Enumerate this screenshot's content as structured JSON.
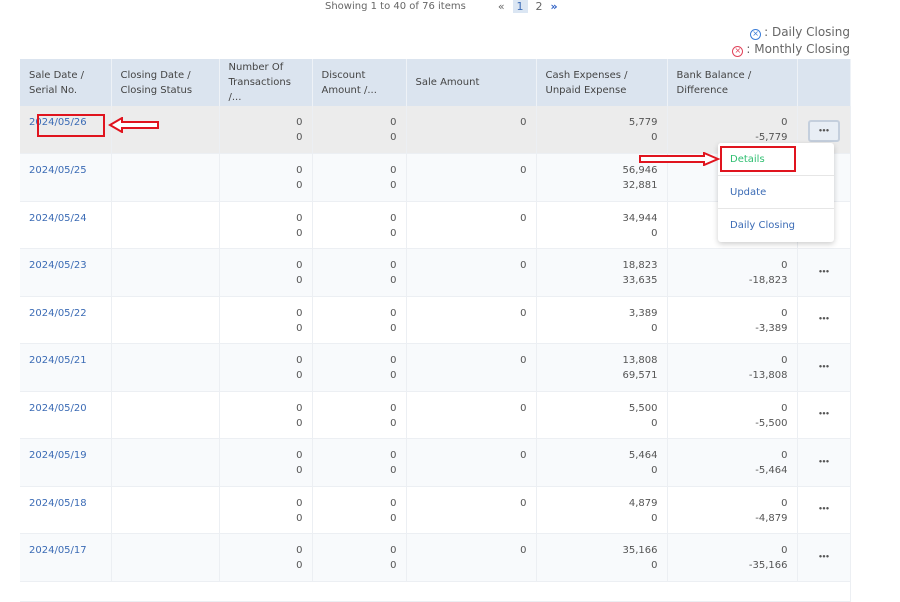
{
  "pagination": {
    "info": "Showing 1 to 40 of 76 items",
    "prev": "«",
    "pages": [
      "1",
      "2"
    ],
    "current": "1",
    "next": "»"
  },
  "legend": {
    "daily": ": Daily Closing",
    "monthly": ": Monthly Closing",
    "daily_color": "#3b7dd8",
    "monthly_color": "#e0435a"
  },
  "columns": [
    "Sale Date / Serial No.",
    "Closing Date / Closing Status",
    "Number Of Transactions /...",
    "Discount Amount /...",
    "Sale Amount",
    "Cash Expenses / Unpaid Expense",
    "Bank Balance / Difference",
    ""
  ],
  "rows": [
    {
      "date": "2024/05/26",
      "tx": [
        "0",
        "0"
      ],
      "disc": [
        "0",
        "0"
      ],
      "sale": "0",
      "cash": [
        "5,779",
        "0"
      ],
      "bank": [
        "0",
        "-5,779"
      ]
    },
    {
      "date": "2024/05/25",
      "tx": [
        "0",
        "0"
      ],
      "disc": [
        "0",
        "0"
      ],
      "sale": "0",
      "cash": [
        "56,946",
        "32,881"
      ],
      "bank": [
        "",
        ""
      ]
    },
    {
      "date": "2024/05/24",
      "tx": [
        "0",
        "0"
      ],
      "disc": [
        "0",
        "0"
      ],
      "sale": "0",
      "cash": [
        "34,944",
        "0"
      ],
      "bank": [
        "",
        ""
      ]
    },
    {
      "date": "2024/05/23",
      "tx": [
        "0",
        "0"
      ],
      "disc": [
        "0",
        "0"
      ],
      "sale": "0",
      "cash": [
        "18,823",
        "33,635"
      ],
      "bank": [
        "0",
        "-18,823"
      ]
    },
    {
      "date": "2024/05/22",
      "tx": [
        "0",
        "0"
      ],
      "disc": [
        "0",
        "0"
      ],
      "sale": "0",
      "cash": [
        "3,389",
        "0"
      ],
      "bank": [
        "0",
        "-3,389"
      ]
    },
    {
      "date": "2024/05/21",
      "tx": [
        "0",
        "0"
      ],
      "disc": [
        "0",
        "0"
      ],
      "sale": "0",
      "cash": [
        "13,808",
        "69,571"
      ],
      "bank": [
        "0",
        "-13,808"
      ]
    },
    {
      "date": "2024/05/20",
      "tx": [
        "0",
        "0"
      ],
      "disc": [
        "0",
        "0"
      ],
      "sale": "0",
      "cash": [
        "5,500",
        "0"
      ],
      "bank": [
        "0",
        "-5,500"
      ]
    },
    {
      "date": "2024/05/19",
      "tx": [
        "0",
        "0"
      ],
      "disc": [
        "0",
        "0"
      ],
      "sale": "0",
      "cash": [
        "5,464",
        "0"
      ],
      "bank": [
        "0",
        "-5,464"
      ]
    },
    {
      "date": "2024/05/18",
      "tx": [
        "0",
        "0"
      ],
      "disc": [
        "0",
        "0"
      ],
      "sale": "0",
      "cash": [
        "4,879",
        "0"
      ],
      "bank": [
        "0",
        "-4,879"
      ]
    },
    {
      "date": "2024/05/17",
      "tx": [
        "0",
        "0"
      ],
      "disc": [
        "0",
        "0"
      ],
      "sale": "0",
      "cash": [
        "35,166",
        "0"
      ],
      "bank": [
        "0",
        "-35,166"
      ]
    }
  ],
  "row_menu": {
    "icon": "more-horizontal-icon",
    "items": [
      "Details",
      "Update",
      "Daily Closing"
    ]
  },
  "annotation_color": "#e0141e"
}
